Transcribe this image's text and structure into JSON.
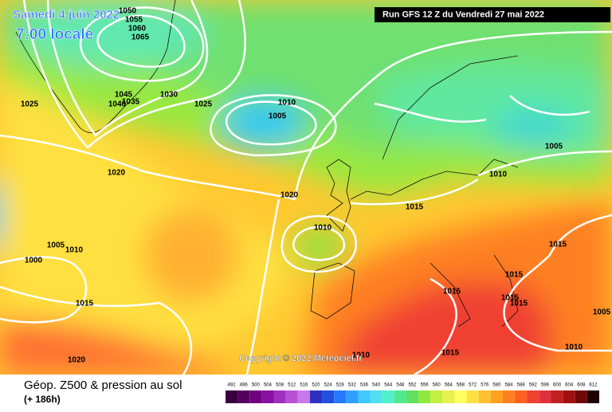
{
  "header": {
    "date": "Samedi 4 juin 2022",
    "time": "7:00 locale",
    "run": "Run GFS 12 Z du Vendredi 27 mai 2022",
    "copyright": "Copyright © 2022 Meteociel.fr"
  },
  "footer": {
    "title": "Géop. Z500 & pression au sol",
    "subtitle": "(+ 186h)"
  },
  "scale": {
    "labels": [
      492,
      496,
      500,
      504,
      508,
      512,
      516,
      520,
      524,
      528,
      532,
      536,
      540,
      544,
      548,
      552,
      556,
      560,
      564,
      568,
      572,
      576,
      580,
      584,
      588,
      592,
      596,
      600,
      604,
      608,
      612
    ],
    "colors": [
      "#3a0040",
      "#55005f",
      "#70007f",
      "#8a10a0",
      "#a030c0",
      "#b850d8",
      "#c878e8",
      "#3030c0",
      "#2050e0",
      "#2878ff",
      "#30a0ff",
      "#40c8ff",
      "#50e0f0",
      "#50f0c8",
      "#50e890",
      "#60e060",
      "#90e840",
      "#c0f040",
      "#e8f050",
      "#ffff60",
      "#ffe040",
      "#ffc030",
      "#ffa020",
      "#ff8020",
      "#ff6020",
      "#f04030",
      "#e03040",
      "#c02020",
      "#a01010",
      "#700808",
      "#200000"
    ]
  },
  "isobar_labels": [
    "1050",
    "1055",
    "1060",
    "1065",
    "1025",
    "1045",
    "1040",
    "1035",
    "1030",
    "1025",
    "1010",
    "1005",
    "1005",
    "1020",
    "1020",
    "1010",
    "1015",
    "1010",
    "1005",
    "1010",
    "1000",
    "1015",
    "1015",
    "1015",
    "1015",
    "1015",
    "1015",
    "1005",
    "1010",
    "1015",
    "1020",
    "1010"
  ]
}
